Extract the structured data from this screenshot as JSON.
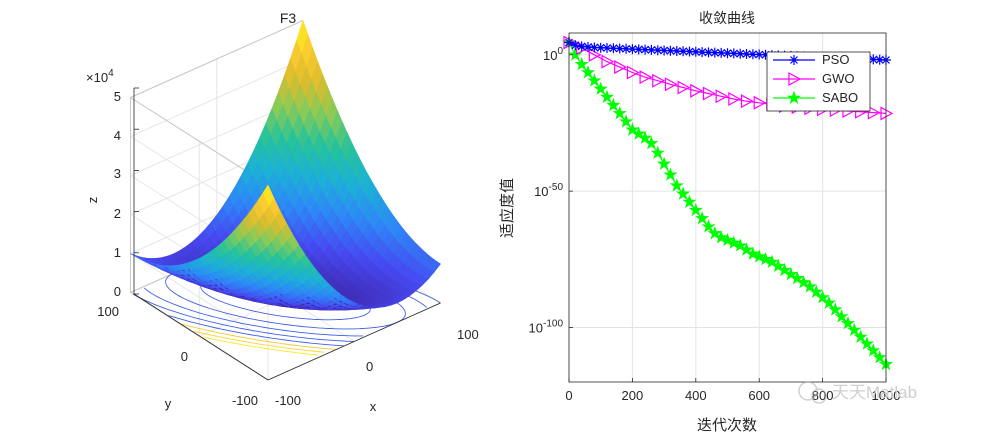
{
  "chart_data": [
    {
      "type": "surface3d",
      "title": "F3",
      "xlabel": "x",
      "ylabel": "y",
      "zlabel": "z",
      "z_exponent_label": "×10",
      "z_exponent": "4",
      "xticks": [
        "-100",
        "0",
        "100"
      ],
      "yticks": [
        "-100",
        "0",
        "100"
      ],
      "zticks": [
        "0",
        "1",
        "2",
        "3",
        "4",
        "5"
      ],
      "xlim": [
        -100,
        100
      ],
      "ylim": [
        -100,
        100
      ],
      "zlim": [
        0,
        50000
      ],
      "z_scale": 10000,
      "colormap": [
        "#3e26a8",
        "#4748f1",
        "#2e87f7",
        "#1cb1d6",
        "#26c29b",
        "#85cb59",
        "#ddbc2e",
        "#fbcd2f",
        "#f9fb15"
      ],
      "contour_color": "#4060e8"
    },
    {
      "type": "line",
      "title": "收敛曲线",
      "xlabel": "迭代次数",
      "ylabel": "适应度值",
      "xlim": [
        0,
        1000
      ],
      "xticks": [
        "0",
        "200",
        "400",
        "600",
        "800",
        "1000"
      ],
      "ylim_log10": [
        -120,
        8
      ],
      "yscale": "log",
      "yticks": [
        {
          "base": "10",
          "exp": "0",
          "log": 0
        },
        {
          "base": "10",
          "exp": "-50",
          "log": -50
        },
        {
          "base": "10",
          "exp": "-100",
          "log": -100
        }
      ],
      "grid": true,
      "legend_position": "top-right",
      "series": [
        {
          "name": "PSO",
          "color": "#0000ff",
          "marker": "asterisk",
          "x": [
            0,
            20,
            40,
            60,
            80,
            100,
            120,
            140,
            160,
            180,
            200,
            220,
            240,
            260,
            280,
            300,
            320,
            340,
            360,
            380,
            400,
            420,
            440,
            460,
            480,
            500,
            520,
            540,
            560,
            580,
            600,
            620,
            640,
            660,
            680,
            700,
            720,
            740,
            760,
            780,
            800,
            820,
            840,
            860,
            880,
            900,
            920,
            940,
            960,
            980,
            1000
          ],
          "log10_y": [
            4.5,
            3.5,
            3.1,
            2.9,
            2.7,
            2.6,
            2.5,
            2.4,
            2.3,
            2.2,
            2.1,
            2.0,
            1.9,
            1.8,
            1.7,
            1.6,
            1.5,
            1.4,
            1.3,
            1.2,
            1.1,
            1.0,
            0.9,
            0.8,
            0.7,
            0.6,
            0.5,
            0.4,
            0.3,
            0.2,
            0.1,
            0.0,
            -0.1,
            -0.2,
            -0.3,
            -0.4,
            -0.5,
            -0.6,
            -0.7,
            -0.8,
            -0.9,
            -1.0,
            -1.1,
            -1.2,
            -1.3,
            -1.4,
            -1.5,
            -1.6,
            -1.7,
            -1.8,
            -1.9
          ]
        },
        {
          "name": "GWO",
          "color": "#ff00ff",
          "marker": "triangle-right",
          "x": [
            0,
            40,
            80,
            120,
            160,
            200,
            240,
            280,
            320,
            360,
            400,
            440,
            480,
            520,
            560,
            600,
            640,
            680,
            720,
            760,
            800,
            840,
            880,
            920,
            960,
            1000
          ],
          "log10_y": [
            4.5,
            2.5,
            0.0,
            -2.5,
            -4.5,
            -6.5,
            -8.2,
            -9.5,
            -10.8,
            -12.0,
            -13.2,
            -14.2,
            -15.2,
            -16.2,
            -17.0,
            -17.6,
            -18.2,
            -18.8,
            -19.2,
            -19.6,
            -20.0,
            -20.3,
            -20.6,
            -20.9,
            -21.2,
            -21.5
          ]
        },
        {
          "name": "SABO",
          "color": "#00ff00",
          "marker": "pentagram",
          "x": [
            0,
            20,
            40,
            60,
            80,
            100,
            120,
            140,
            160,
            180,
            200,
            220,
            240,
            260,
            280,
            300,
            320,
            340,
            360,
            380,
            400,
            420,
            440,
            460,
            480,
            500,
            520,
            540,
            560,
            580,
            600,
            620,
            640,
            660,
            680,
            700,
            720,
            740,
            760,
            780,
            800,
            820,
            840,
            860,
            880,
            900,
            920,
            940,
            960,
            980,
            1000
          ],
          "log10_y": [
            4.5,
            0.0,
            -3.5,
            -6.5,
            -9.5,
            -12.5,
            -15.5,
            -18.5,
            -21.5,
            -24.5,
            -27.5,
            -29.0,
            -30.5,
            -32.5,
            -36.0,
            -40.0,
            -44.0,
            -48.0,
            -51.0,
            -54.0,
            -57.0,
            -60.0,
            -63.0,
            -65.5,
            -67.0,
            -68.0,
            -69.0,
            -70.0,
            -71.5,
            -73.0,
            -74.0,
            -75.0,
            -76.0,
            -77.5,
            -79.0,
            -80.5,
            -82.0,
            -83.5,
            -85.0,
            -87.0,
            -89.0,
            -91.0,
            -93.5,
            -96.0,
            -98.5,
            -101.0,
            -103.5,
            -106.0,
            -108.5,
            -111.0,
            -113.5
          ]
        }
      ]
    }
  ],
  "watermark": {
    "text": "天天Matlab"
  }
}
